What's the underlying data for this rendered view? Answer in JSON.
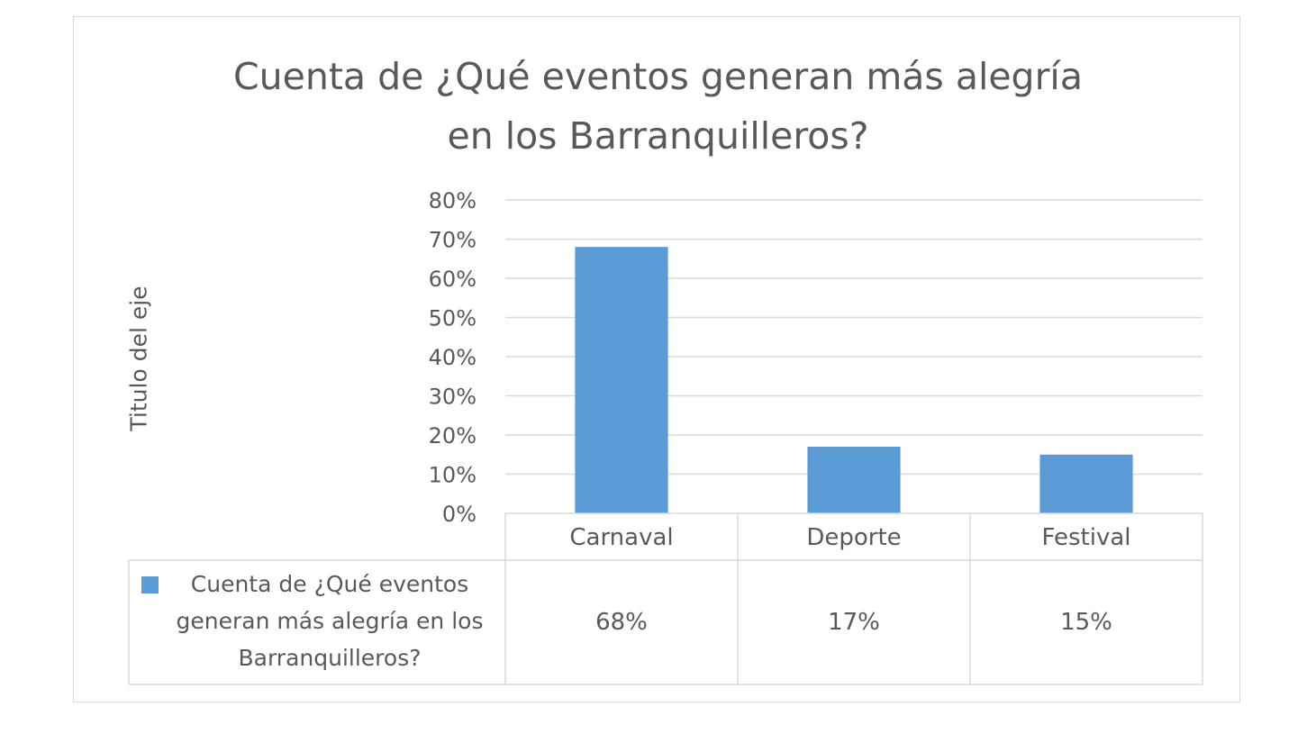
{
  "chart_data": {
    "type": "bar",
    "title_lines": [
      "Cuenta de ¿Qué eventos generan más alegría",
      "en los Barranquilleros?"
    ],
    "ylabel": "Titulo del eje",
    "xlabel": "",
    "categories": [
      "Carnaval",
      "Deporte",
      "Festival"
    ],
    "series": [
      {
        "name": "Cuenta de ¿Qué eventos generan más alegría en los Barranquilleros?",
        "values": [
          0.68,
          0.17,
          0.15
        ],
        "value_labels": [
          "68%",
          "17%",
          "15%"
        ],
        "color": "#5b9bd5"
      }
    ],
    "ylim": [
      0,
      0.8
    ],
    "y_ticks": [
      0,
      0.1,
      0.2,
      0.3,
      0.4,
      0.5,
      0.6,
      0.7,
      0.8
    ],
    "y_tick_labels": [
      "0%",
      "10%",
      "20%",
      "30%",
      "40%",
      "50%",
      "60%",
      "70%",
      "80%"
    ],
    "grid": true,
    "legend": "data-table",
    "data_table": true,
    "colors": {
      "bar": "#5b9bd5",
      "text": "#595959",
      "grid": "#d9d9d9",
      "table_border": "#d9d9d9"
    }
  }
}
